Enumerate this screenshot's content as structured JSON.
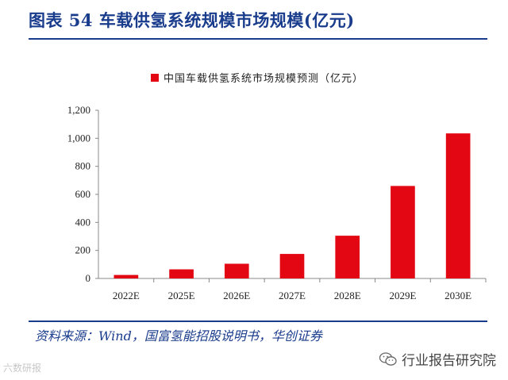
{
  "figure": {
    "title": "图表 54  车载供氢系统规模市场规模(亿元)",
    "source": "资料来源：Wind，国富氢能招股说明书，华创证券"
  },
  "watermarks": {
    "left": "六数研报",
    "right": "行业报告研究院"
  },
  "colors": {
    "bar": "#e30613",
    "title": "#1a3c8c",
    "axis": "#888888"
  },
  "chart_data": {
    "type": "bar",
    "title": "",
    "categories": [
      "2022E",
      "2025E",
      "2026E",
      "2027E",
      "2028E",
      "2029E",
      "2030E"
    ],
    "series": [
      {
        "name": "中国车载供氢系统市场规模预测（亿元）",
        "values": [
          25,
          65,
          105,
          175,
          305,
          660,
          1035
        ]
      }
    ],
    "y_ticks": [
      "0",
      "200",
      "400",
      "600",
      "800",
      "1,000",
      "1,200"
    ],
    "ylim": [
      0,
      1200
    ],
    "xlabel": "",
    "ylabel": "",
    "legend_position": "top-center",
    "grid": false
  }
}
